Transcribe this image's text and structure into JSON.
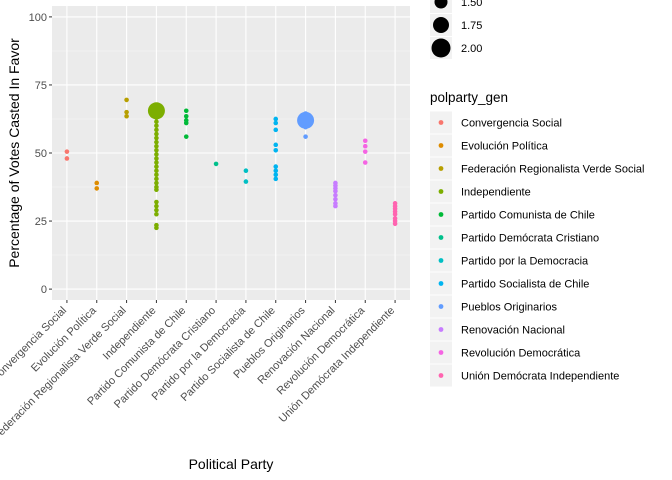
{
  "chart_data": {
    "type": "scatter",
    "xlabel": "Political Party",
    "ylabel": "Percentage of Votes Casted In Favor",
    "ylim": [
      -4,
      104
    ],
    "yticks": [
      0,
      25,
      50,
      75,
      100
    ],
    "grid": true,
    "legend_placement": "right",
    "categories": [
      "Convergencia Social",
      "Evolución Política",
      "Federación Regionalista Verde Social",
      "Independiente",
      "Partido Comunista de Chile",
      "Partido Demócrata Cristiano",
      "Partido por la Democracia",
      "Partido Socialista de Chile",
      "Pueblos Originarios",
      "Renovación Nacional",
      "Revolución Democrática",
      "Unión Demócrata Independiente"
    ],
    "size_legend": {
      "title": "",
      "entries": [
        {
          "label": "1.50",
          "value": 1.5
        },
        {
          "label": "1.75",
          "value": 1.75
        },
        {
          "label": "2.00",
          "value": 2.0
        }
      ]
    },
    "color_legend": {
      "title": "polparty_gen",
      "entries": [
        {
          "label": "Convergencia Social",
          "color": "#F8766D"
        },
        {
          "label": "Evolución Política",
          "color": "#DE8C00"
        },
        {
          "label": "Federación Regionalista Verde Social",
          "color": "#B79F00"
        },
        {
          "label": "Independiente",
          "color": "#7CAE00"
        },
        {
          "label": "Partido Comunista de Chile",
          "color": "#00BA38"
        },
        {
          "label": "Partido Demócrata Cristiano",
          "color": "#00C08B"
        },
        {
          "label": "Partido por la Democracia",
          "color": "#00BFC4"
        },
        {
          "label": "Partido Socialista de Chile",
          "color": "#00B4F0"
        },
        {
          "label": "Pueblos Originarios",
          "color": "#619CFF"
        },
        {
          "label": "Renovación Nacional",
          "color": "#C77CFF"
        },
        {
          "label": "Revolución Democrática",
          "color": "#F564E3"
        },
        {
          "label": "Unión Demócrata Independiente",
          "color": "#FF64B0"
        }
      ]
    },
    "series": [
      {
        "party": "Convergencia Social",
        "color": "#F8766D",
        "points": [
          {
            "y": 50.5,
            "n": 1
          },
          {
            "y": 48,
            "n": 1
          }
        ]
      },
      {
        "party": "Evolución Política",
        "color": "#DE8C00",
        "points": [
          {
            "y": 39,
            "n": 1
          },
          {
            "y": 37,
            "n": 1
          }
        ]
      },
      {
        "party": "Federación Regionalista Verde Social",
        "color": "#B79F00",
        "points": [
          {
            "y": 69.5,
            "n": 1
          },
          {
            "y": 65,
            "n": 1
          },
          {
            "y": 63.5,
            "n": 1
          }
        ]
      },
      {
        "party": "Independiente",
        "color": "#7CAE00",
        "points": [
          {
            "y": 65.5,
            "n": 2
          },
          {
            "y": 63,
            "n": 1
          },
          {
            "y": 61.5,
            "n": 1
          },
          {
            "y": 60,
            "n": 1
          },
          {
            "y": 58.5,
            "n": 1
          },
          {
            "y": 57,
            "n": 1
          },
          {
            "y": 55.5,
            "n": 1
          },
          {
            "y": 54,
            "n": 1
          },
          {
            "y": 52.5,
            "n": 1
          },
          {
            "y": 51,
            "n": 1
          },
          {
            "y": 49.5,
            "n": 1
          },
          {
            "y": 48,
            "n": 1
          },
          {
            "y": 46.5,
            "n": 1
          },
          {
            "y": 45,
            "n": 1
          },
          {
            "y": 43.5,
            "n": 1
          },
          {
            "y": 42,
            "n": 1
          },
          {
            "y": 40.5,
            "n": 1
          },
          {
            "y": 39,
            "n": 1
          },
          {
            "y": 37.5,
            "n": 1
          },
          {
            "y": 36.5,
            "n": 1
          },
          {
            "y": 32,
            "n": 1
          },
          {
            "y": 30.5,
            "n": 1
          },
          {
            "y": 29,
            "n": 1
          },
          {
            "y": 27.5,
            "n": 1
          },
          {
            "y": 23.5,
            "n": 1
          },
          {
            "y": 22.5,
            "n": 1
          }
        ]
      },
      {
        "party": "Partido Comunista de Chile",
        "color": "#00BA38",
        "points": [
          {
            "y": 65.5,
            "n": 1
          },
          {
            "y": 63.5,
            "n": 1
          },
          {
            "y": 62,
            "n": 1
          },
          {
            "y": 61,
            "n": 1
          },
          {
            "y": 56,
            "n": 1
          }
        ]
      },
      {
        "party": "Partido Demócrata Cristiano",
        "color": "#00C08B",
        "points": [
          {
            "y": 46,
            "n": 1
          }
        ]
      },
      {
        "party": "Partido por la Democracia",
        "color": "#00BFC4",
        "points": [
          {
            "y": 43.5,
            "n": 1
          },
          {
            "y": 39.5,
            "n": 1
          }
        ]
      },
      {
        "party": "Partido Socialista de Chile",
        "color": "#00B4F0",
        "points": [
          {
            "y": 62.5,
            "n": 1
          },
          {
            "y": 61,
            "n": 1
          },
          {
            "y": 58.5,
            "n": 1
          },
          {
            "y": 53,
            "n": 1
          },
          {
            "y": 51,
            "n": 1
          },
          {
            "y": 45,
            "n": 1
          },
          {
            "y": 43.5,
            "n": 1
          },
          {
            "y": 42,
            "n": 1
          },
          {
            "y": 40.5,
            "n": 1
          }
        ]
      },
      {
        "party": "Pueblos Originarios",
        "color": "#619CFF",
        "points": [
          {
            "y": 62,
            "n": 2
          },
          {
            "y": 64.5,
            "n": 1
          },
          {
            "y": 59.5,
            "n": 1
          },
          {
            "y": 56,
            "n": 1
          }
        ]
      },
      {
        "party": "Renovación Nacional",
        "color": "#C77CFF",
        "points": [
          {
            "y": 39,
            "n": 1
          },
          {
            "y": 38,
            "n": 1
          },
          {
            "y": 37,
            "n": 1
          },
          {
            "y": 36,
            "n": 1
          },
          {
            "y": 34.5,
            "n": 1
          },
          {
            "y": 33,
            "n": 1
          },
          {
            "y": 31.5,
            "n": 1
          },
          {
            "y": 30.5,
            "n": 1
          }
        ]
      },
      {
        "party": "Revolución Democrática",
        "color": "#F564E3",
        "points": [
          {
            "y": 54.5,
            "n": 1
          },
          {
            "y": 52.5,
            "n": 1
          },
          {
            "y": 50.5,
            "n": 1
          },
          {
            "y": 46.5,
            "n": 1
          }
        ]
      },
      {
        "party": "Unión Demócrata Independiente",
        "color": "#FF64B0",
        "points": [
          {
            "y": 31.5,
            "n": 1
          },
          {
            "y": 30.5,
            "n": 1
          },
          {
            "y": 29.5,
            "n": 1
          },
          {
            "y": 28.5,
            "n": 1
          },
          {
            "y": 27.5,
            "n": 1
          },
          {
            "y": 26,
            "n": 1
          },
          {
            "y": 25,
            "n": 1
          },
          {
            "y": 24,
            "n": 1
          }
        ]
      }
    ]
  }
}
